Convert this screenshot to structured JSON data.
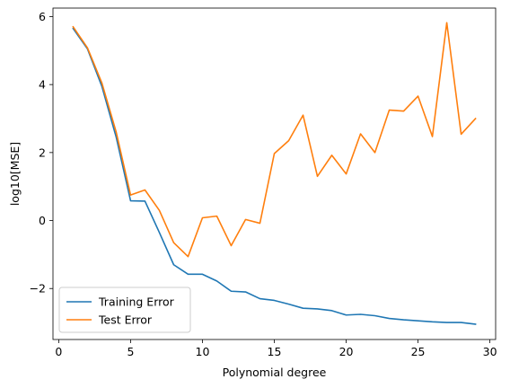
{
  "chart_data": {
    "type": "line",
    "title": "",
    "xlabel": "Polynomial degree",
    "ylabel": "log10[MSE]",
    "xlim": [
      -0.4,
      30.4
    ],
    "ylim": [
      -3.5,
      6.25
    ],
    "xticks": [
      0,
      5,
      10,
      15,
      20,
      25,
      30
    ],
    "yticks": [
      -2,
      0,
      2,
      4,
      6
    ],
    "xtick_labels": [
      "0",
      "5",
      "10",
      "15",
      "20",
      "25",
      "30"
    ],
    "ytick_labels": [
      "−2",
      "0",
      "2",
      "4",
      "6"
    ],
    "grid": false,
    "legend_position": "lower-left",
    "x": [
      1,
      2,
      3,
      4,
      5,
      6,
      7,
      8,
      9,
      10,
      11,
      12,
      13,
      14,
      15,
      16,
      17,
      18,
      19,
      20,
      21,
      22,
      23,
      24,
      25,
      26,
      27,
      28,
      29
    ],
    "series": [
      {
        "name": "Training Error",
        "color": "#1f77b4",
        "values": [
          5.65,
          5.05,
          3.95,
          2.45,
          0.58,
          0.57,
          -0.35,
          -1.3,
          -1.58,
          -1.58,
          -1.78,
          -2.08,
          -2.1,
          -2.3,
          -2.35,
          -2.46,
          -2.58,
          -2.6,
          -2.65,
          -2.78,
          -2.76,
          -2.8,
          -2.88,
          -2.92,
          -2.95,
          -2.98,
          -3.0,
          -3.0,
          -3.05
        ]
      },
      {
        "name": "Test Error",
        "color": "#ff7f0e",
        "values": [
          5.7,
          5.08,
          4.05,
          2.6,
          0.75,
          0.9,
          0.3,
          -0.65,
          -1.06,
          0.08,
          0.13,
          -0.74,
          0.03,
          -0.08,
          1.97,
          2.35,
          3.1,
          1.3,
          1.92,
          1.37,
          2.55,
          2.0,
          3.25,
          3.22,
          3.66,
          2.47,
          5.82,
          2.54,
          3.0
        ]
      }
    ]
  }
}
